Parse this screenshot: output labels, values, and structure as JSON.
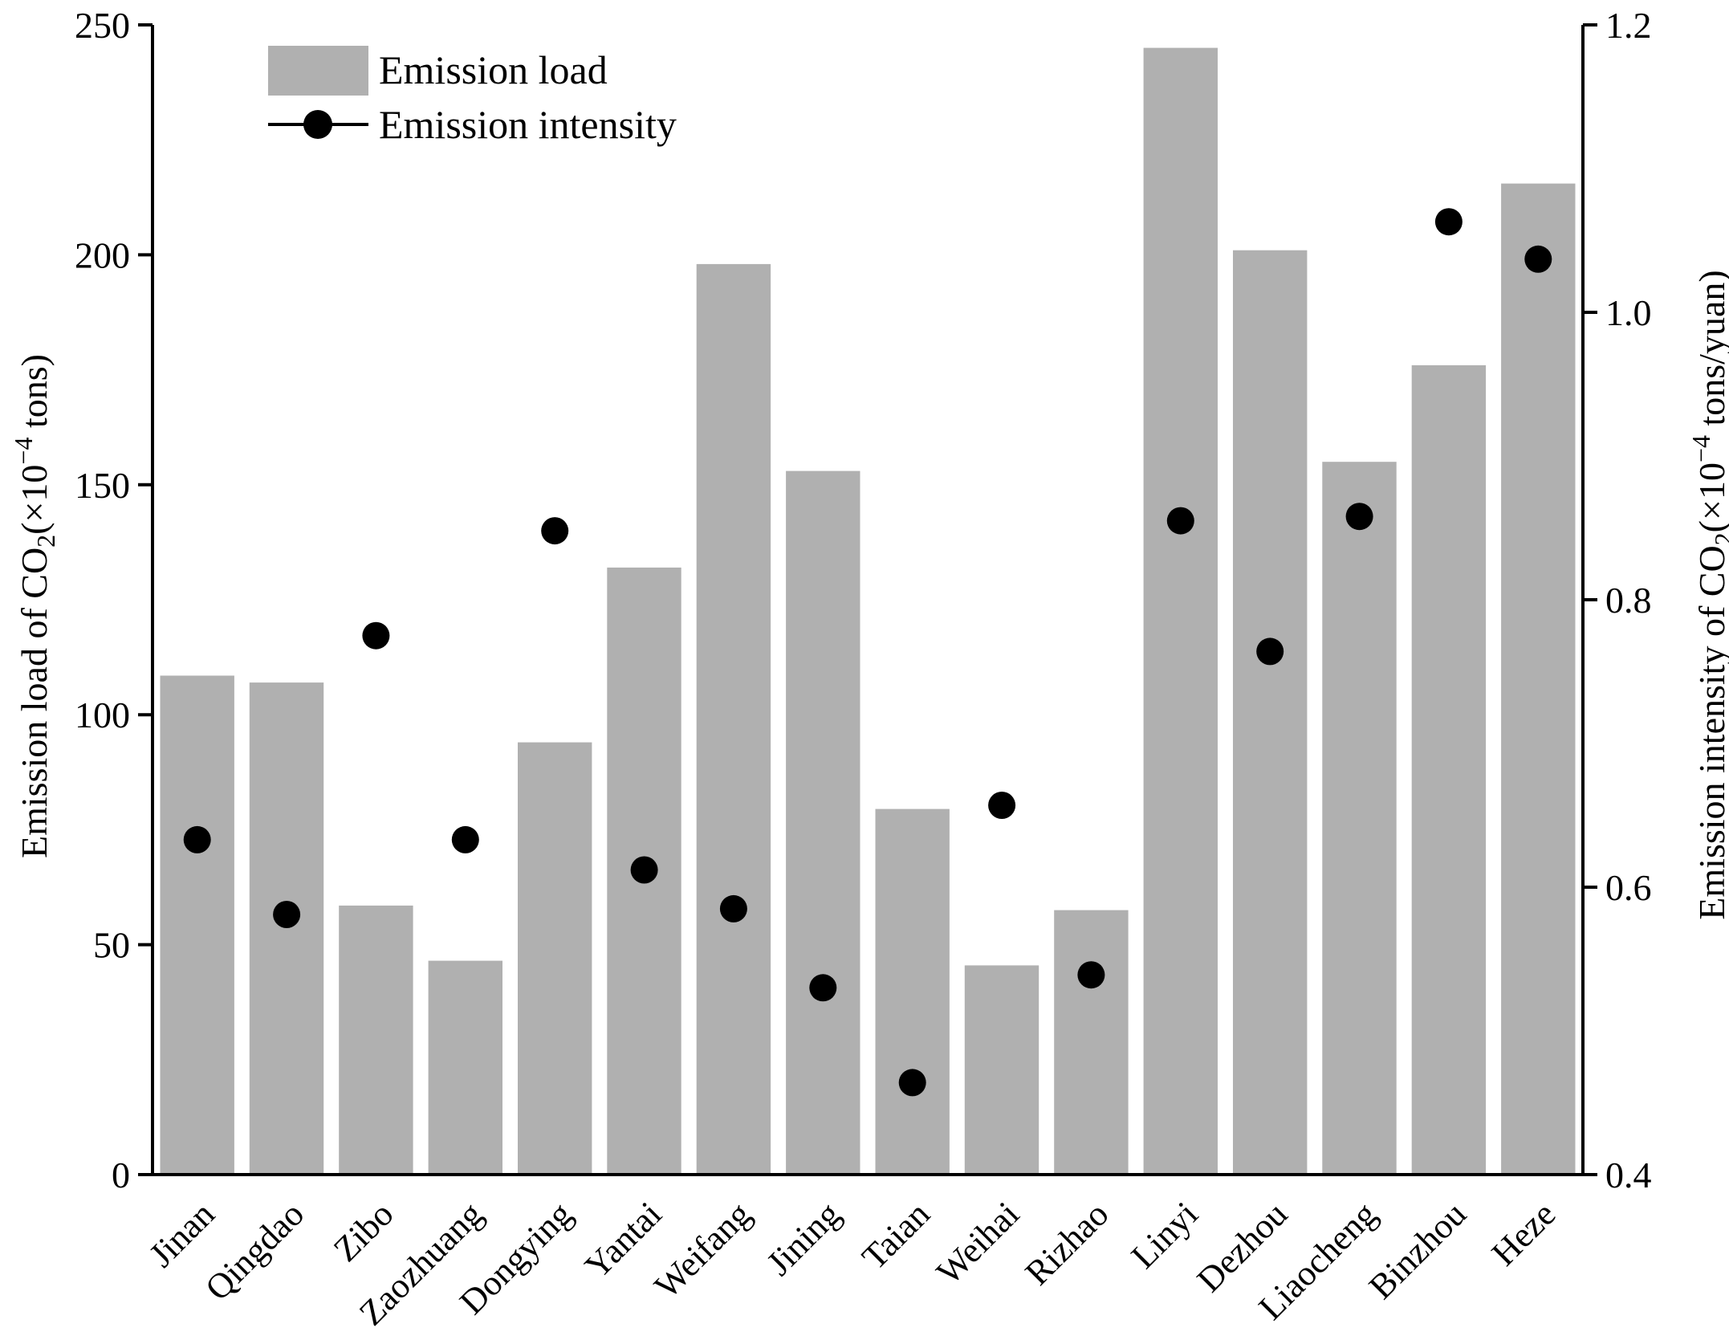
{
  "chart_data": {
    "type": "bar+scatter",
    "categories": [
      "Jinan",
      "Qingdao",
      "Zibo",
      "Zaozhuang",
      "Dongying",
      "Yantai",
      "Weifang",
      "Jining",
      "Taian",
      "Weihai",
      "Rizhao",
      "Linyi",
      "Dezhou",
      "Liaocheng",
      "Binzhou",
      "Heze"
    ],
    "series": [
      {
        "name": "Emission load",
        "kind": "bar",
        "axis": "left",
        "color": "#b0b0b0",
        "values": [
          108.5,
          107,
          58.5,
          46.5,
          94,
          132,
          198,
          153,
          79.5,
          45.5,
          57.5,
          245,
          201,
          155,
          176,
          215.5
        ]
      },
      {
        "name": "Emission intensity",
        "kind": "scatter",
        "axis": "right",
        "color": "#000000",
        "values": [
          0.633,
          0.581,
          0.775,
          0.633,
          0.848,
          0.612,
          0.585,
          0.53,
          0.464,
          0.657,
          0.539,
          0.855,
          0.764,
          0.858,
          1.063,
          1.037
        ]
      }
    ],
    "y_left": {
      "label_main": "Emission load of CO",
      "label_sub": "2",
      "label_rest": "(×10",
      "label_sup": "−4",
      "label_end": " tons)",
      "ylim": [
        0,
        250
      ],
      "ticks": [
        "0",
        "50",
        "100",
        "150",
        "200",
        "250"
      ],
      "tick_values": [
        0,
        50,
        100,
        150,
        200,
        250
      ]
    },
    "y_right": {
      "label_main": "Emission intensity of CO",
      "label_sub": "2",
      "label_rest": "(×10",
      "label_sup": "−4",
      "label_end": " tons/yuan)",
      "ylim": [
        0.4,
        1.2
      ],
      "ticks": [
        "0.4",
        "0.6",
        "0.8",
        "1.0",
        "1.2"
      ],
      "tick_values": [
        0.4,
        0.6,
        0.8,
        1.0,
        1.2
      ]
    },
    "legend": {
      "position": "top-left",
      "bar_label": "Emission load",
      "marker_label": "Emission intensity"
    }
  }
}
